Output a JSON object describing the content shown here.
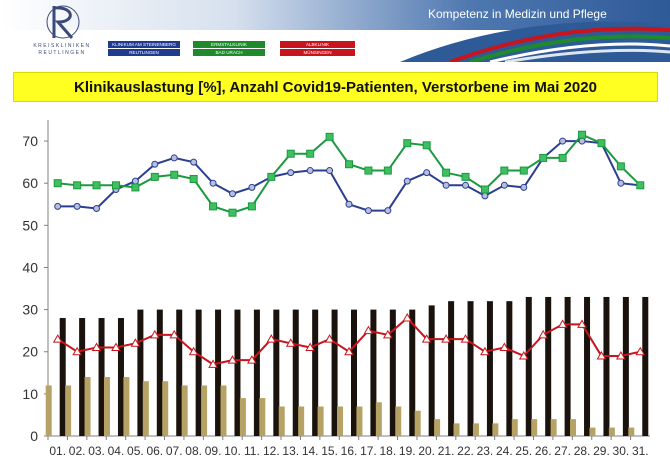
{
  "header": {
    "logo": {
      "org_line1": "KREISKLINIKEN",
      "org_line2": "REUTLINGEN"
    },
    "tagline": "Kompetenz in Medizin und Pflege",
    "sites": [
      {
        "line1": "KLINIKUM AM STEINENBERG",
        "line2": "REUTLINGEN",
        "color": "#1f3a8f"
      },
      {
        "line1": "ERMSTALKLINIK",
        "line2": "BAD URACH",
        "color": "#1e8a2c"
      },
      {
        "line1": "ALBKLINIK",
        "line2": "MÜNSINGEN",
        "color": "#c8141c"
      }
    ]
  },
  "colors": {
    "title_bg": "#ffff22",
    "header_blue": "#3b6aa6",
    "black_bar": "#1a120c",
    "tan_bar": "#b6a264",
    "blue_line": "#2a3f92",
    "green_line": "#1a9a40",
    "red_line": "#c8141c"
  },
  "chart_data": {
    "type": "bar",
    "title": "Klinikauslastung [%], Anzahl Covid19-Patienten, Verstorbene im Mai 2020",
    "categories": [
      "01.",
      "02.",
      "03.",
      "04.",
      "05.",
      "06.",
      "07.",
      "08.",
      "09.",
      "10.",
      "11.",
      "12.",
      "13.",
      "14.",
      "15.",
      "16.",
      "17.",
      "18.",
      "19.",
      "20.",
      "21.",
      "22.",
      "23.",
      "24.",
      "25.",
      "26.",
      "27.",
      "28.",
      "29.",
      "30.",
      "31."
    ],
    "ylim": [
      0,
      75
    ],
    "yticks": [
      "0",
      "10",
      "20",
      "30",
      "40",
      "50",
      "60",
      "70"
    ],
    "grid": false,
    "legend": "none",
    "series": [
      {
        "type": "bar",
        "color": "#1a120c",
        "values": [
          28,
          28,
          28,
          28,
          30,
          30,
          30,
          30,
          30,
          30,
          30,
          30,
          30,
          30,
          30,
          30,
          30,
          30,
          30,
          31,
          32,
          32,
          32,
          32,
          33,
          33,
          33,
          33,
          33,
          33,
          33
        ]
      },
      {
        "type": "bar",
        "color": "#b6a264",
        "values": [
          12,
          12,
          14,
          14,
          14,
          13,
          13,
          12,
          12,
          12,
          9,
          9,
          7,
          7,
          7,
          7,
          7,
          8,
          7,
          6,
          4,
          3,
          3,
          3,
          4,
          4,
          4,
          4,
          2,
          2,
          2
        ]
      },
      {
        "type": "line",
        "marker": "circle",
        "color": "#2a3f92",
        "values": [
          54.5,
          54.5,
          54,
          58.5,
          60.5,
          64.5,
          66,
          65,
          60,
          57.5,
          59,
          61.5,
          62.5,
          63,
          63,
          55,
          53.5,
          53.5,
          60.5,
          62.5,
          59.5,
          59.5,
          57,
          59.5,
          59,
          66,
          70,
          70,
          69.5,
          60,
          59.5
        ]
      },
      {
        "type": "line",
        "marker": "square",
        "color": "#1a9a40",
        "values": [
          60,
          59.5,
          59.5,
          59.5,
          59,
          61.5,
          62,
          61,
          54.5,
          53,
          54.5,
          61.5,
          67,
          67,
          71,
          64.5,
          63,
          63,
          69.5,
          69,
          62.5,
          61.5,
          58.5,
          63,
          63,
          66,
          66,
          71.5,
          69.5,
          64,
          59.5
        ]
      },
      {
        "type": "line",
        "marker": "triangle",
        "color": "#c8141c",
        "values": [
          23,
          20,
          21,
          21,
          22,
          24,
          24,
          20,
          17,
          18,
          18,
          23,
          22,
          21,
          23,
          20,
          25,
          24,
          28,
          23,
          23,
          23,
          20,
          21,
          19,
          24,
          26.5,
          26.5,
          19,
          19,
          20
        ]
      }
    ]
  }
}
